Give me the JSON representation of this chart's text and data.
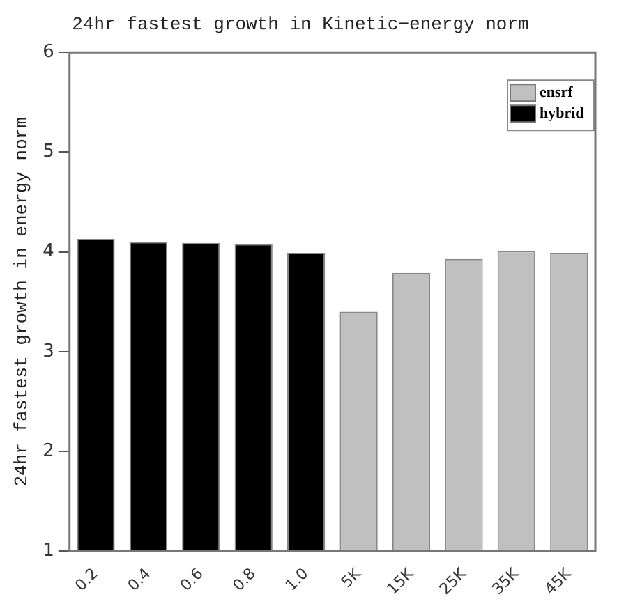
{
  "chart_data": {
    "type": "bar",
    "title": "24hr fastest growth in Kinetic−energy norm",
    "ylabel": "24hr fastest growth in energy norm",
    "categories": [
      "0.2",
      "0.4",
      "0.6",
      "0.8",
      "1.0",
      "5K",
      "15K",
      "25K",
      "35K",
      "45K"
    ],
    "series": [
      {
        "name": "ensrf",
        "color": "#c0c0c0",
        "values": [
          null,
          null,
          null,
          null,
          null,
          3.4,
          3.79,
          3.93,
          4.01,
          3.99
        ]
      },
      {
        "name": "hybrid",
        "color": "#000000",
        "values": [
          4.13,
          4.1,
          4.09,
          4.08,
          3.99,
          null,
          null,
          null,
          null,
          null
        ]
      }
    ],
    "ylim": [
      1,
      6
    ],
    "yticks": [
      1,
      2,
      3,
      4,
      5,
      6
    ],
    "grid": false,
    "legend": "top right"
  }
}
